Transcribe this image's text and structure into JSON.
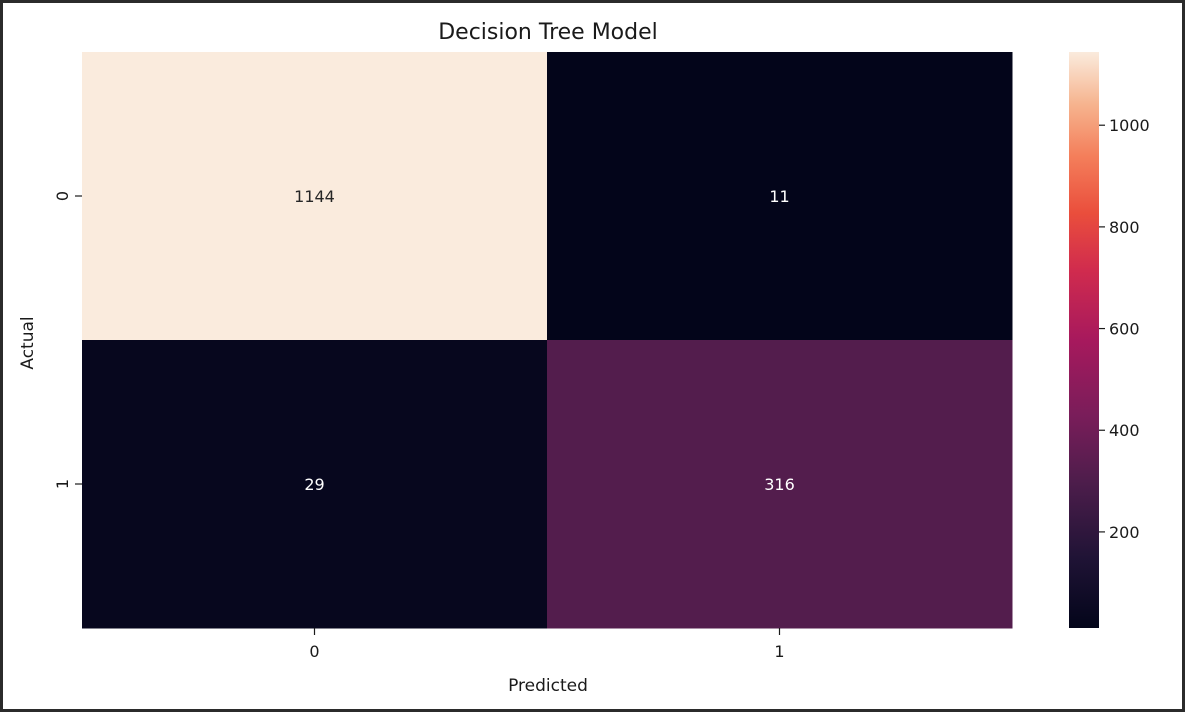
{
  "chart_data": {
    "type": "heatmap",
    "title": "Decision Tree Model",
    "xlabel": "Predicted",
    "ylabel": "Actual",
    "x_categories": [
      "0",
      "1"
    ],
    "y_categories": [
      "0",
      "1"
    ],
    "values": [
      [
        1144,
        11
      ],
      [
        29,
        316
      ]
    ],
    "colormap": "rocket",
    "colorbar": {
      "range": [
        11,
        1144
      ],
      "ticks": [
        200,
        400,
        600,
        800,
        1000
      ]
    },
    "grid": false
  }
}
